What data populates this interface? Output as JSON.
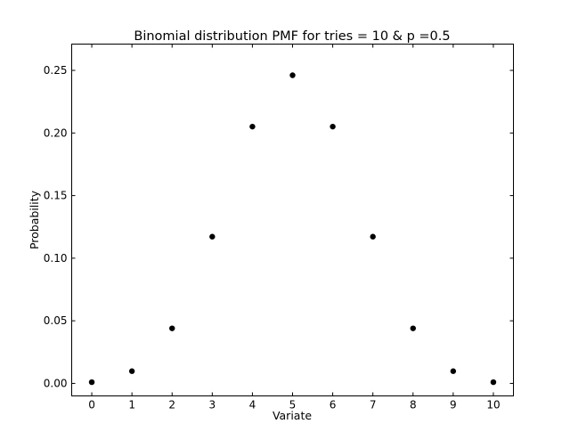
{
  "chart_data": {
    "type": "scatter",
    "title": "Binomial distribution PMF for tries = 10 & p =0.5",
    "xlabel": "Variate",
    "ylabel": "Probability",
    "x": [
      0,
      1,
      2,
      3,
      4,
      5,
      6,
      7,
      8,
      9,
      10
    ],
    "values": [
      0.000977,
      0.009766,
      0.043945,
      0.117188,
      0.205078,
      0.246094,
      0.205078,
      0.117188,
      0.043945,
      0.009766,
      0.000977
    ],
    "xlim": [
      -0.5,
      10.5
    ],
    "ylim": [
      -0.01,
      0.271
    ],
    "xticks": [
      "0",
      "1",
      "2",
      "3",
      "4",
      "5",
      "6",
      "7",
      "8",
      "9",
      "10"
    ],
    "yticks": [
      "0.00",
      "0.05",
      "0.10",
      "0.15",
      "0.20",
      "0.25"
    ],
    "grid": false,
    "legend": null,
    "marker_color": "#000000"
  }
}
